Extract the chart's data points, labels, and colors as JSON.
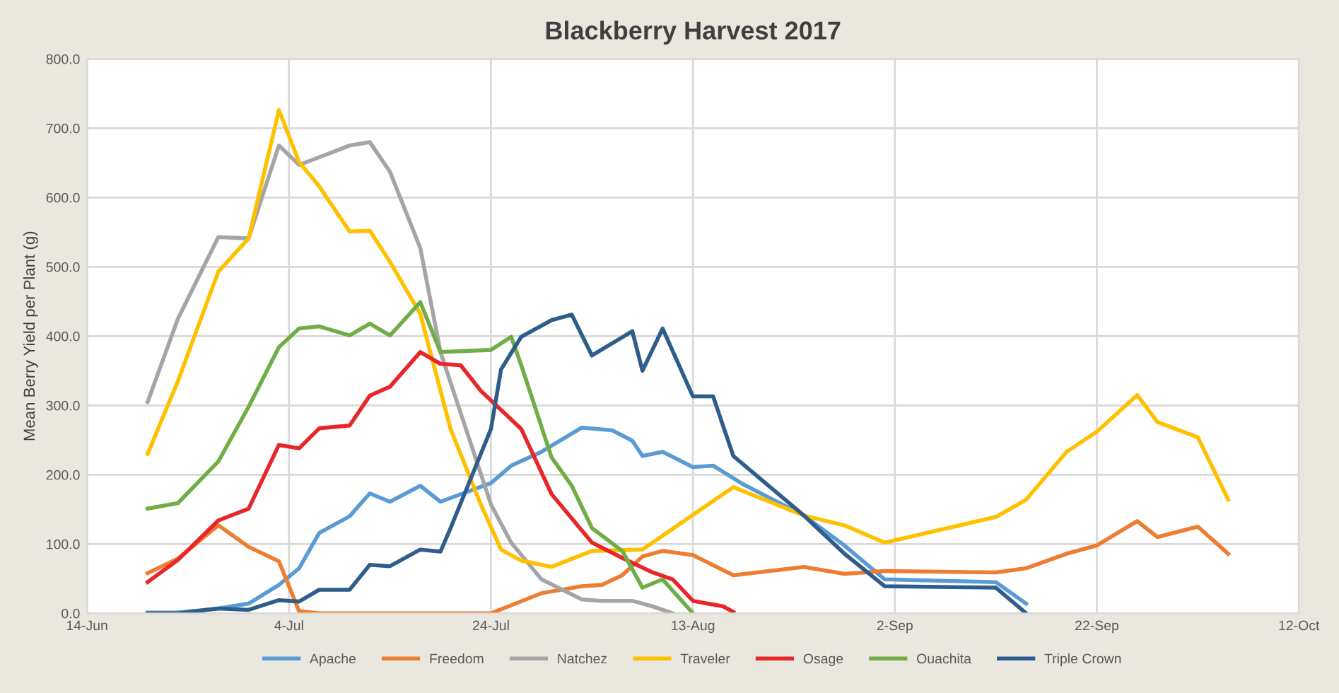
{
  "chart_data": {
    "type": "line",
    "title": "Blackberry Harvest 2017",
    "ylabel": "Mean Berry Yield per Plant (g)",
    "xlim": [
      "2017-06-14",
      "2017-10-12"
    ],
    "xticks": [
      {
        "value": "2017-06-14",
        "label": "14-Jun"
      },
      {
        "value": "2017-07-04",
        "label": "4-Jul"
      },
      {
        "value": "2017-07-24",
        "label": "24-Jul"
      },
      {
        "value": "2017-08-13",
        "label": "13-Aug"
      },
      {
        "value": "2017-09-02",
        "label": "2-Sep"
      },
      {
        "value": "2017-09-22",
        "label": "22-Sep"
      },
      {
        "value": "2017-10-12",
        "label": "12-Oct"
      }
    ],
    "ylim": [
      0,
      800
    ],
    "yticks": [
      {
        "value": 0,
        "label": "0.0"
      },
      {
        "value": 100,
        "label": "100.0"
      },
      {
        "value": 200,
        "label": "200.0"
      },
      {
        "value": 300,
        "label": "300.0"
      },
      {
        "value": 400,
        "label": "400.0"
      },
      {
        "value": 500,
        "label": "500.0"
      },
      {
        "value": 600,
        "label": "600.0"
      },
      {
        "value": 700,
        "label": "700.0"
      },
      {
        "value": 800,
        "label": "800.0"
      }
    ],
    "grid": true,
    "legend": "bottom",
    "marker": "none",
    "line_style": "solid",
    "series": [
      {
        "name": "Apache",
        "color": "#5b9bd5",
        "x": [
          "2017-06-20",
          "2017-06-23",
          "2017-06-27",
          "2017-06-30",
          "2017-07-03",
          "2017-07-05",
          "2017-07-07",
          "2017-07-10",
          "2017-07-12",
          "2017-07-14",
          "2017-07-17",
          "2017-07-19",
          "2017-07-24",
          "2017-07-26",
          "2017-07-29",
          "2017-08-02",
          "2017-08-05",
          "2017-08-07",
          "2017-08-08",
          "2017-08-10",
          "2017-08-13",
          "2017-08-15",
          "2017-08-18",
          "2017-08-24",
          "2017-08-28",
          "2017-09-01",
          "2017-09-12",
          "2017-09-15"
        ],
        "values": [
          1,
          1,
          7,
          14,
          41,
          65,
          116,
          140,
          173,
          161,
          184,
          161,
          188,
          213,
          233,
          268,
          264,
          249,
          227,
          233,
          211,
          213,
          186,
          141,
          98,
          49,
          45,
          14
        ]
      },
      {
        "name": "Freedom",
        "color": "#ed7d31",
        "x": [
          "2017-06-20",
          "2017-06-23",
          "2017-06-27",
          "2017-06-30",
          "2017-07-03",
          "2017-07-05",
          "2017-07-07",
          "2017-07-24",
          "2017-07-29",
          "2017-08-02",
          "2017-08-04",
          "2017-08-06",
          "2017-08-08",
          "2017-08-10",
          "2017-08-13",
          "2017-08-17",
          "2017-08-24",
          "2017-08-28",
          "2017-09-01",
          "2017-09-12",
          "2017-09-15",
          "2017-09-19",
          "2017-09-22",
          "2017-09-26",
          "2017-09-28",
          "2017-10-02",
          "2017-10-05"
        ],
        "values": [
          58,
          79,
          127,
          96,
          75,
          3,
          0,
          0,
          29,
          39,
          41,
          55,
          82,
          90,
          84,
          55,
          67,
          57,
          61,
          59,
          65,
          86,
          98,
          133,
          110,
          125,
          86
        ]
      },
      {
        "name": "Natchez",
        "color": "#a5a5a5",
        "x": [
          "2017-06-20",
          "2017-06-23",
          "2017-06-27",
          "2017-06-30",
          "2017-07-03",
          "2017-07-05",
          "2017-07-10",
          "2017-07-12",
          "2017-07-14",
          "2017-07-17",
          "2017-07-19",
          "2017-07-24",
          "2017-07-26",
          "2017-07-29",
          "2017-08-02",
          "2017-08-04",
          "2017-08-07",
          "2017-08-09",
          "2017-08-11"
        ],
        "values": [
          305,
          425,
          543,
          541,
          675,
          647,
          675,
          680,
          637,
          527,
          377,
          157,
          102,
          49,
          20,
          18,
          18,
          10,
          0
        ]
      },
      {
        "name": "Traveler",
        "color": "#ffc000",
        "x": [
          "2017-06-20",
          "2017-06-23",
          "2017-06-27",
          "2017-06-30",
          "2017-07-03",
          "2017-07-05",
          "2017-07-07",
          "2017-07-10",
          "2017-07-12",
          "2017-07-14",
          "2017-07-17",
          "2017-07-20",
          "2017-07-23",
          "2017-07-25",
          "2017-07-27",
          "2017-07-30",
          "2017-08-03",
          "2017-08-08",
          "2017-08-17",
          "2017-08-24",
          "2017-08-28",
          "2017-09-01",
          "2017-09-12",
          "2017-09-15",
          "2017-09-19",
          "2017-09-22",
          "2017-09-26",
          "2017-09-28",
          "2017-10-02",
          "2017-10-05"
        ],
        "values": [
          230,
          335,
          493,
          541,
          726,
          651,
          616,
          551,
          552,
          507,
          432,
          266,
          157,
          92,
          76,
          67,
          90,
          92,
          182,
          141,
          127,
          102,
          139,
          164,
          233,
          262,
          315,
          276,
          254,
          164
        ]
      },
      {
        "name": "Osage",
        "color": "#e8262a",
        "x": [
          "2017-06-20",
          "2017-06-23",
          "2017-06-27",
          "2017-06-30",
          "2017-07-03",
          "2017-07-05",
          "2017-07-07",
          "2017-07-10",
          "2017-07-12",
          "2017-07-14",
          "2017-07-17",
          "2017-07-19",
          "2017-07-21",
          "2017-07-23",
          "2017-07-27",
          "2017-07-30",
          "2017-08-03",
          "2017-08-06",
          "2017-08-09",
          "2017-08-11",
          "2017-08-13",
          "2017-08-16",
          "2017-08-17"
        ],
        "values": [
          45,
          77,
          134,
          151,
          243,
          238,
          267,
          271,
          314,
          327,
          377,
          360,
          358,
          321,
          266,
          172,
          102,
          80,
          59,
          49,
          18,
          10,
          2
        ]
      },
      {
        "name": "Ouachita",
        "color": "#70ad47",
        "x": [
          "2017-06-20",
          "2017-06-23",
          "2017-06-27",
          "2017-06-30",
          "2017-07-03",
          "2017-07-05",
          "2017-07-07",
          "2017-07-10",
          "2017-07-12",
          "2017-07-14",
          "2017-07-17",
          "2017-07-19",
          "2017-07-24",
          "2017-07-26",
          "2017-07-27",
          "2017-07-30",
          "2017-08-01",
          "2017-08-03",
          "2017-08-06",
          "2017-08-08",
          "2017-08-10",
          "2017-08-13"
        ],
        "values": [
          151,
          159,
          219,
          298,
          384,
          411,
          414,
          401,
          418,
          401,
          449,
          377,
          380,
          399,
          358,
          225,
          184,
          123,
          90,
          37,
          49,
          0
        ]
      },
      {
        "name": "Triple Crown",
        "color": "#2e5d8c",
        "x": [
          "2017-06-20",
          "2017-06-23",
          "2017-06-27",
          "2017-06-30",
          "2017-07-03",
          "2017-07-05",
          "2017-07-07",
          "2017-07-10",
          "2017-07-12",
          "2017-07-14",
          "2017-07-17",
          "2017-07-19",
          "2017-07-20",
          "2017-07-24",
          "2017-07-25",
          "2017-07-27",
          "2017-07-30",
          "2017-08-01",
          "2017-08-03",
          "2017-08-07",
          "2017-08-08",
          "2017-08-10",
          "2017-08-13",
          "2017-08-15",
          "2017-08-17",
          "2017-08-24",
          "2017-08-28",
          "2017-09-01",
          "2017-09-12",
          "2017-09-15"
        ],
        "values": [
          0,
          0,
          7,
          5,
          19,
          17,
          34,
          34,
          70,
          68,
          92,
          89,
          123,
          266,
          352,
          399,
          423,
          431,
          372,
          407,
          350,
          411,
          313,
          313,
          227,
          141,
          86,
          39,
          37,
          0
        ]
      }
    ]
  }
}
